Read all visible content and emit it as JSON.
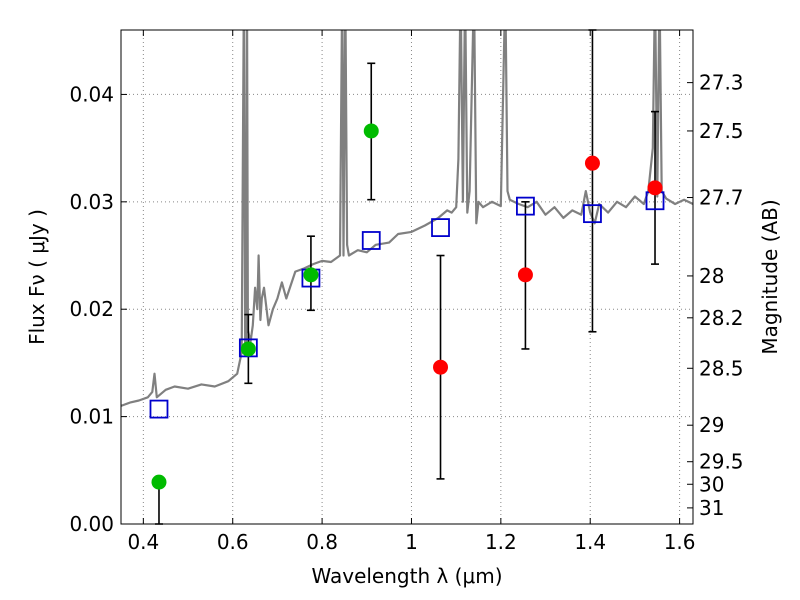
{
  "chart_data": {
    "type": "scatter",
    "xlabel": "Wavelength  λ (μm)",
    "ylabel": "Flux  Fν  ( μJy )",
    "ylabel_right": "Magnitude (AB)",
    "xlim": [
      0.35,
      1.63
    ],
    "ylim": [
      0.0,
      0.046
    ],
    "grid": true,
    "x_ticks": [
      0.4,
      0.6,
      0.8,
      1.0,
      1.2,
      1.4,
      1.6
    ],
    "x_tick_labels": [
      "0.4",
      "0.6",
      "0.8",
      "1",
      "1.2",
      "1.4",
      "1.6"
    ],
    "y_ticks": [
      0.0,
      0.01,
      0.02,
      0.03,
      0.04
    ],
    "y_tick_labels": [
      "0.00",
      "0.01",
      "0.02",
      "0.03",
      "0.04"
    ],
    "right_ticks": [
      {
        "label": "27.3",
        "flux": 0.0411
      },
      {
        "label": "27.5",
        "flux": 0.0366
      },
      {
        "label": "27.7",
        "flux": 0.0304
      },
      {
        "label": "28",
        "flux": 0.0231
      },
      {
        "label": "28.2",
        "flux": 0.0192
      },
      {
        "label": "28.5",
        "flux": 0.0145
      },
      {
        "label": "29",
        "flux": 0.0092
      },
      {
        "label": "29.5",
        "flux": 0.0058
      },
      {
        "label": "30",
        "flux": 0.0037
      },
      {
        "label": "31",
        "flux": 0.0015
      }
    ],
    "colors": {
      "spectrum": "#808080",
      "detection": "#00bb00",
      "nondetection": "#ff0000",
      "model": "#0000cc",
      "errorbar": "#000000",
      "grid": "#888888"
    },
    "spectrum": {
      "x": [
        0.35,
        0.37,
        0.39,
        0.41,
        0.42,
        0.425,
        0.43,
        0.45,
        0.47,
        0.5,
        0.53,
        0.56,
        0.59,
        0.61,
        0.62,
        0.625,
        0.628,
        0.63,
        0.632,
        0.634,
        0.64,
        0.645,
        0.65,
        0.655,
        0.658,
        0.662,
        0.665,
        0.67,
        0.68,
        0.69,
        0.7,
        0.71,
        0.72,
        0.74,
        0.76,
        0.78,
        0.8,
        0.82,
        0.84,
        0.845,
        0.848,
        0.852,
        0.856,
        0.86,
        0.88,
        0.9,
        0.92,
        0.95,
        0.97,
        1.0,
        1.03,
        1.06,
        1.08,
        1.09,
        1.1,
        1.105,
        1.11,
        1.115,
        1.12,
        1.125,
        1.13,
        1.14,
        1.145,
        1.15,
        1.16,
        1.18,
        1.2,
        1.21,
        1.215,
        1.22,
        1.24,
        1.26,
        1.28,
        1.3,
        1.32,
        1.34,
        1.36,
        1.38,
        1.39,
        1.4,
        1.41,
        1.42,
        1.44,
        1.46,
        1.48,
        1.5,
        1.52,
        1.53,
        1.54,
        1.545,
        1.55,
        1.555,
        1.56,
        1.57,
        1.59,
        1.61,
        1.63
      ],
      "y": [
        0.011,
        0.0113,
        0.0115,
        0.0118,
        0.0123,
        0.014,
        0.0118,
        0.0125,
        0.0128,
        0.0126,
        0.013,
        0.0128,
        0.0133,
        0.014,
        0.016,
        0.05,
        0.016,
        0.017,
        0.05,
        0.018,
        0.017,
        0.0185,
        0.022,
        0.02,
        0.025,
        0.019,
        0.021,
        0.022,
        0.0185,
        0.02,
        0.021,
        0.0225,
        0.021,
        0.0235,
        0.0238,
        0.0242,
        0.0245,
        0.0244,
        0.025,
        0.05,
        0.025,
        0.05,
        0.026,
        0.025,
        0.0255,
        0.0253,
        0.026,
        0.0262,
        0.027,
        0.0272,
        0.0278,
        0.0285,
        0.0292,
        0.029,
        0.0295,
        0.034,
        0.05,
        0.03,
        0.05,
        0.029,
        0.031,
        0.05,
        0.028,
        0.03,
        0.0295,
        0.03,
        0.0296,
        0.05,
        0.031,
        0.0302,
        0.0298,
        0.0295,
        0.03,
        0.0288,
        0.0295,
        0.0285,
        0.0292,
        0.0288,
        0.031,
        0.029,
        0.028,
        0.0298,
        0.029,
        0.03,
        0.0295,
        0.0305,
        0.0298,
        0.031,
        0.035,
        0.05,
        0.0305,
        0.05,
        0.031,
        0.0303,
        0.0298,
        0.0302,
        0.0298
      ]
    },
    "detections": [
      {
        "x": 0.435,
        "y": 0.0039,
        "err_low": 0.0,
        "err_high": 0.0039
      },
      {
        "x": 0.635,
        "y": 0.0163,
        "err_low": 0.0131,
        "err_high": 0.0195
      },
      {
        "x": 0.775,
        "y": 0.0232,
        "err_low": 0.0199,
        "err_high": 0.0268
      },
      {
        "x": 0.91,
        "y": 0.0366,
        "err_low": 0.0302,
        "err_high": 0.0429
      }
    ],
    "nondetections": [
      {
        "x": 1.065,
        "y": 0.0146,
        "err_low": 0.0042,
        "err_high": 0.025
      },
      {
        "x": 1.255,
        "y": 0.0232,
        "err_low": 0.0163,
        "err_high": 0.03
      },
      {
        "x": 1.405,
        "y": 0.0336,
        "err_low": 0.0179,
        "err_high": 0.046
      },
      {
        "x": 1.545,
        "y": 0.0313,
        "err_low": 0.0242,
        "err_high": 0.0384
      }
    ],
    "model": [
      {
        "x": 0.435,
        "y": 0.0107
      },
      {
        "x": 0.635,
        "y": 0.0164
      },
      {
        "x": 0.775,
        "y": 0.0229
      },
      {
        "x": 0.91,
        "y": 0.0264
      },
      {
        "x": 1.065,
        "y": 0.0276
      },
      {
        "x": 1.255,
        "y": 0.0296
      },
      {
        "x": 1.405,
        "y": 0.0289
      },
      {
        "x": 1.545,
        "y": 0.0301
      }
    ]
  }
}
